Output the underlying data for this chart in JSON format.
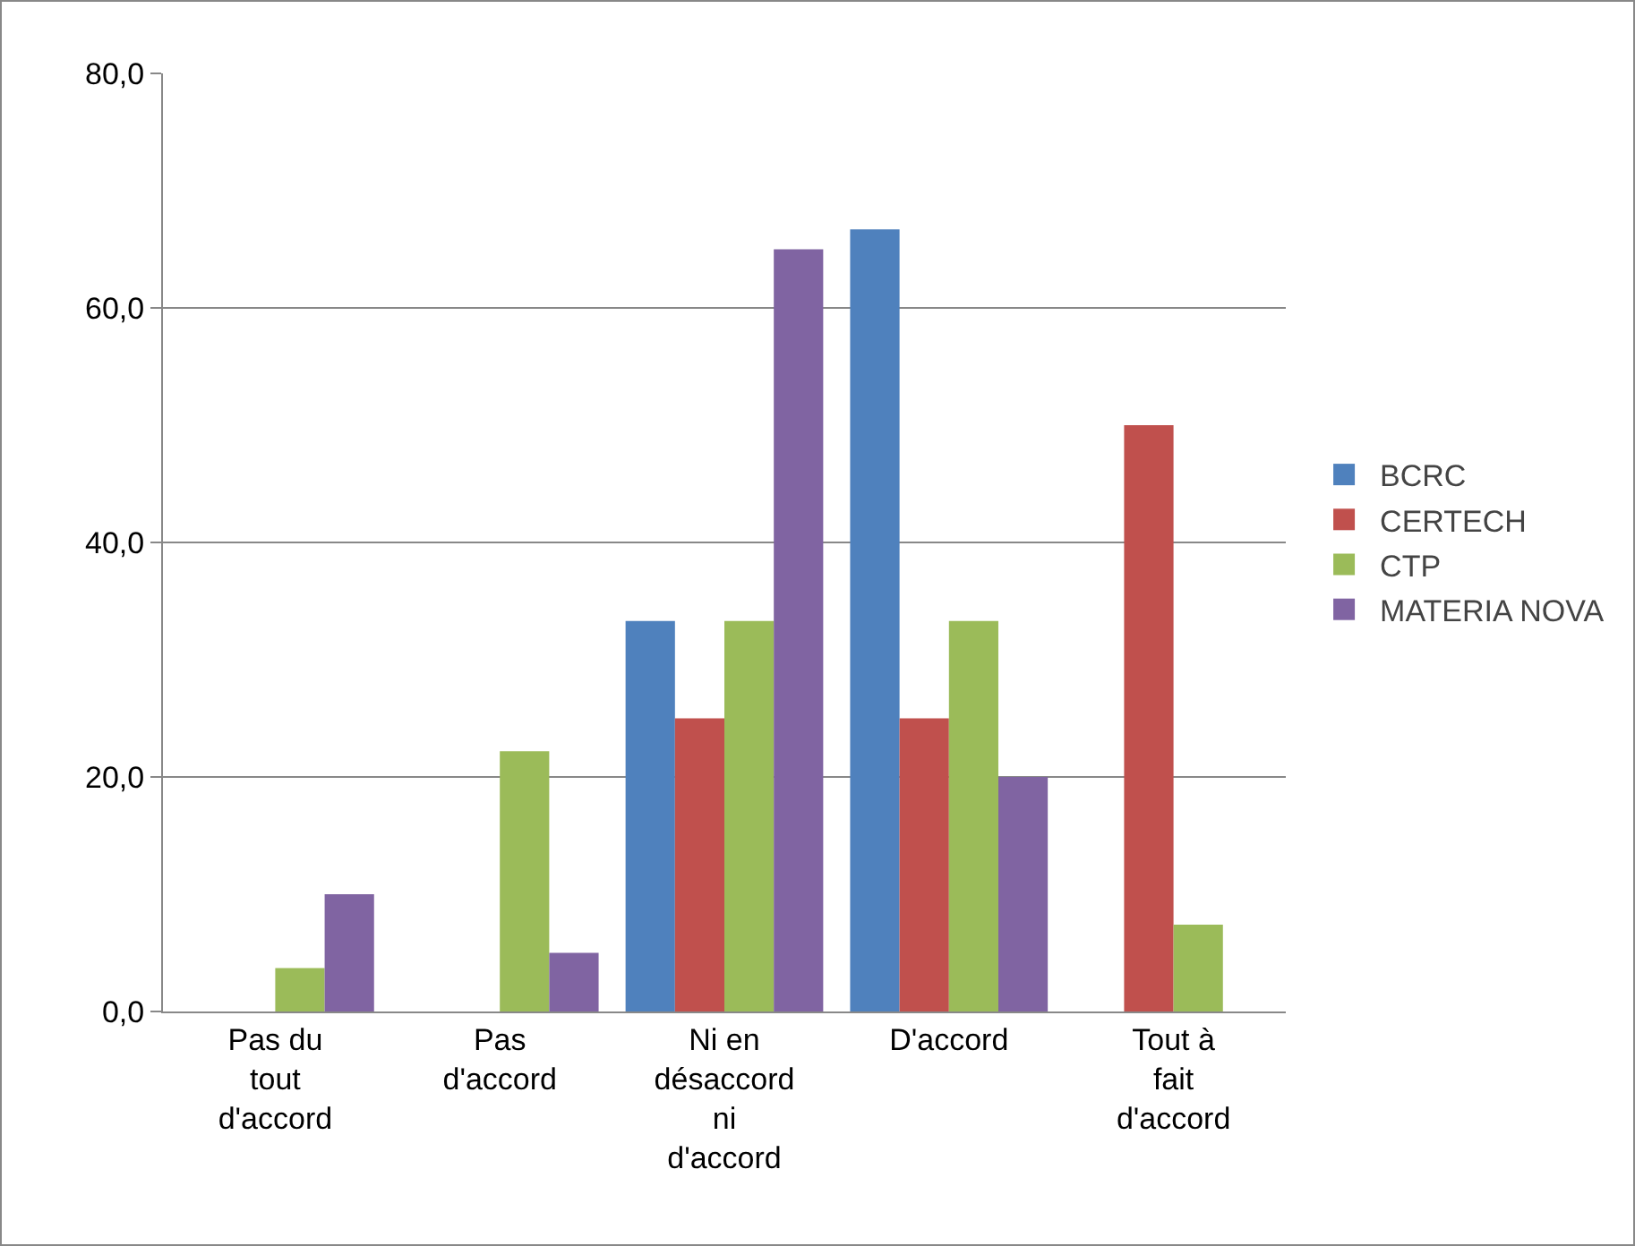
{
  "chart_data": {
    "type": "bar",
    "categories": [
      "Pas du tout d'accord",
      "Pas d'accord",
      "Ni en désaccord ni d'accord",
      "D'accord",
      "Tout à fait d'accord"
    ],
    "series": [
      {
        "name": "BCRC",
        "color": "#4f81bd",
        "values": [
          0,
          0,
          33.3,
          66.7,
          0
        ]
      },
      {
        "name": "CERTECH",
        "color": "#c0504d",
        "values": [
          0,
          0,
          25,
          25,
          50
        ]
      },
      {
        "name": "CTP",
        "color": "#9bbb59",
        "values": [
          3.7,
          22.2,
          33.3,
          33.3,
          7.4
        ]
      },
      {
        "name": "MATERIA NOVA",
        "color": "#8064a2",
        "values": [
          10,
          5,
          65,
          20,
          0
        ]
      }
    ],
    "ylim": [
      0,
      80
    ],
    "yticks": [
      {
        "value": 0,
        "label": "0,0"
      },
      {
        "value": 20,
        "label": "20,0"
      },
      {
        "value": 40,
        "label": "40,0"
      },
      {
        "value": 60,
        "label": "60,0"
      },
      {
        "value": 80,
        "label": "80,0"
      }
    ],
    "grid": "y",
    "legend": "right"
  }
}
